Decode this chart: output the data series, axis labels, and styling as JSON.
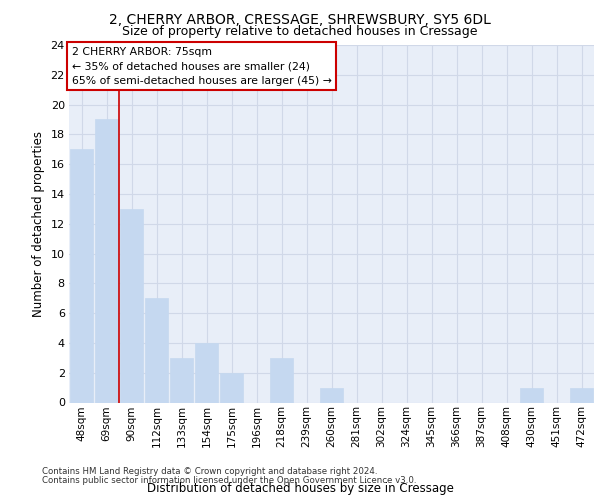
{
  "title_line1": "2, CHERRY ARBOR, CRESSAGE, SHREWSBURY, SY5 6DL",
  "title_line2": "Size of property relative to detached houses in Cressage",
  "xlabel": "Distribution of detached houses by size in Cressage",
  "ylabel": "Number of detached properties",
  "bar_labels": [
    "48sqm",
    "69sqm",
    "90sqm",
    "112sqm",
    "133sqm",
    "154sqm",
    "175sqm",
    "196sqm",
    "218sqm",
    "239sqm",
    "260sqm",
    "281sqm",
    "302sqm",
    "324sqm",
    "345sqm",
    "366sqm",
    "387sqm",
    "408sqm",
    "430sqm",
    "451sqm",
    "472sqm"
  ],
  "bar_values": [
    17,
    19,
    13,
    7,
    3,
    4,
    2,
    0,
    3,
    0,
    1,
    0,
    0,
    0,
    0,
    0,
    0,
    0,
    1,
    0,
    1
  ],
  "bar_color": "#c5d8f0",
  "bar_edge_color": "#c5d8f0",
  "grid_color": "#d0d8e8",
  "background_color": "#e8eef8",
  "annotation_title": "2 CHERRY ARBOR: 75sqm",
  "annotation_line2": "← 35% of detached houses are smaller (24)",
  "annotation_line3": "65% of semi-detached houses are larger (45) →",
  "annotation_box_color": "#ffffff",
  "annotation_border_color": "#cc0000",
  "ylim": [
    0,
    24
  ],
  "yticks": [
    0,
    2,
    4,
    6,
    8,
    10,
    12,
    14,
    16,
    18,
    20,
    22,
    24
  ],
  "footer_line1": "Contains HM Land Registry data © Crown copyright and database right 2024.",
  "footer_line2": "Contains public sector information licensed under the Open Government Licence v3.0.",
  "red_line_x": 1.5
}
